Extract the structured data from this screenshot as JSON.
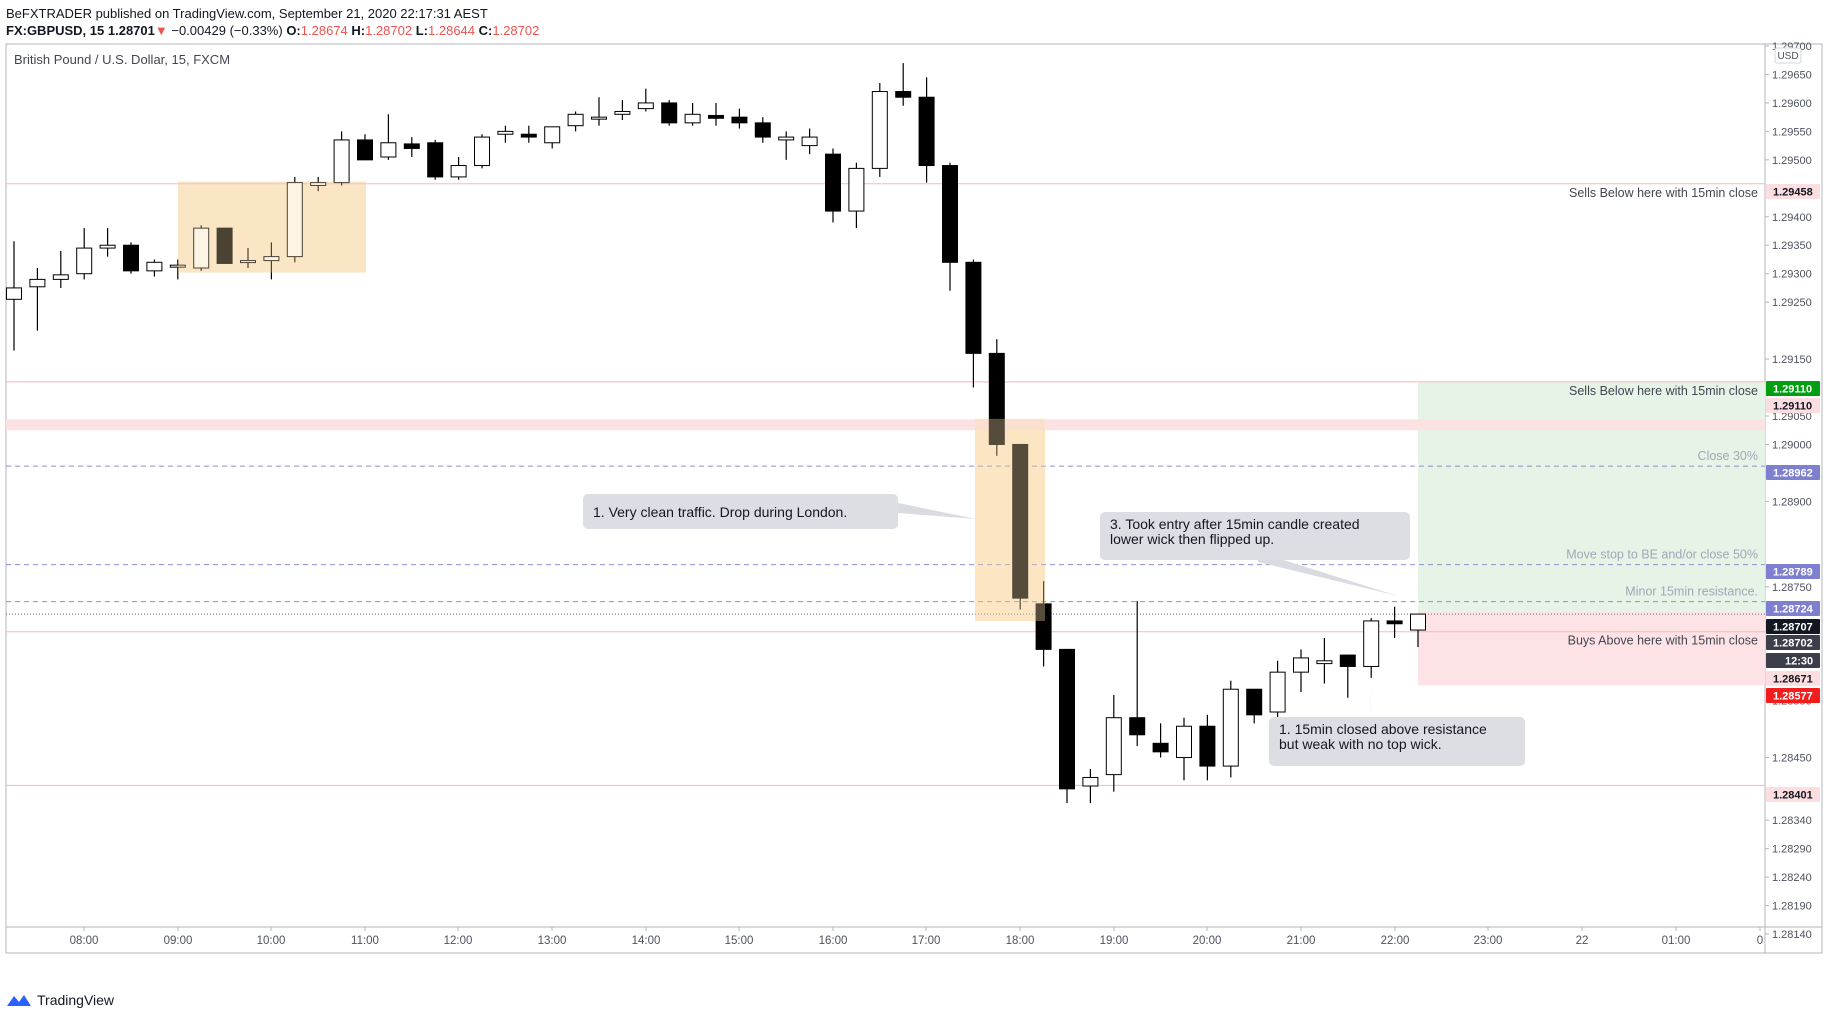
{
  "header": {
    "line1": "BeFXTRADER published on TradingView.com, September 21, 2020 22:17:31 AEST",
    "symbol": "FX:GBPUSD, 15",
    "last": "1.28701",
    "arrow": "▼",
    "change": "−0.00429 (−0.33%)",
    "o_label": "O:",
    "o_value": "1.28674",
    "h_label": "H:",
    "h_value": "1.28702",
    "l_label": "L:",
    "l_value": "1.28644",
    "c_label": "C:",
    "c_value": "1.28702"
  },
  "chart_title": "British Pound / U.S. Dollar, 15, FXCM",
  "currency_badge": "USD",
  "footer": {
    "brand": "TradingView"
  },
  "colors": {
    "up_candle": "#ffffff",
    "down_candle": "#000000",
    "red_line": "#f8b8bd",
    "tp_zone": "#e5f4e7",
    "sl_zone": "#fde3e5",
    "highlight_zone": "#fdebd0",
    "dash_line": "#8b91c9"
  },
  "chart_data": {
    "type": "candlestick",
    "title": "British Pound / U.S. Dollar, 15, FXCM",
    "y_ticks": [
      "1.29700",
      "1.29650",
      "1.29600",
      "1.29550",
      "1.29500",
      "1.29400",
      "1.29350",
      "1.29300",
      "1.29250",
      "1.29150",
      "1.29050",
      "1.29000",
      "1.28900",
      "1.28750",
      "1.28550",
      "1.28450",
      "1.28340",
      "1.28290",
      "1.28240",
      "1.28190",
      "1.28140"
    ],
    "x_ticks": [
      "08:00",
      "09:00",
      "10:00",
      "11:00",
      "12:00",
      "13:00",
      "14:00",
      "15:00",
      "16:00",
      "17:00",
      "18:00",
      "19:00",
      "20:00",
      "21:00",
      "22:00",
      "23:00",
      "22",
      "01:00",
      "0"
    ],
    "candles": [
      {
        "o": 1.29255,
        "h": 1.29357,
        "l": 1.29165,
        "c": 1.29275
      },
      {
        "o": 1.29277,
        "h": 1.2931,
        "l": 1.292,
        "c": 1.2929
      },
      {
        "o": 1.2929,
        "h": 1.2934,
        "l": 1.29275,
        "c": 1.29298
      },
      {
        "o": 1.293,
        "h": 1.2938,
        "l": 1.2929,
        "c": 1.29345
      },
      {
        "o": 1.29345,
        "h": 1.2938,
        "l": 1.2933,
        "c": 1.2935
      },
      {
        "o": 1.2935,
        "h": 1.29355,
        "l": 1.293,
        "c": 1.29305
      },
      {
        "o": 1.29305,
        "h": 1.29325,
        "l": 1.29295,
        "c": 1.2932
      },
      {
        "o": 1.29312,
        "h": 1.29325,
        "l": 1.2929,
        "c": 1.29315
      },
      {
        "o": 1.2931,
        "h": 1.29385,
        "l": 1.29305,
        "c": 1.2938
      },
      {
        "o": 1.2938,
        "h": 1.2938,
        "l": 1.29318,
        "c": 1.29318
      },
      {
        "o": 1.2932,
        "h": 1.29345,
        "l": 1.2931,
        "c": 1.29323
      },
      {
        "o": 1.29323,
        "h": 1.29355,
        "l": 1.2929,
        "c": 1.2933
      },
      {
        "o": 1.2933,
        "h": 1.2947,
        "l": 1.2932,
        "c": 1.2946
      },
      {
        "o": 1.29455,
        "h": 1.2947,
        "l": 1.29445,
        "c": 1.2946
      },
      {
        "o": 1.2946,
        "h": 1.2955,
        "l": 1.29455,
        "c": 1.29535
      },
      {
        "o": 1.29535,
        "h": 1.29545,
        "l": 1.295,
        "c": 1.295
      },
      {
        "o": 1.29505,
        "h": 1.2958,
        "l": 1.295,
        "c": 1.2953
      },
      {
        "o": 1.29528,
        "h": 1.2954,
        "l": 1.29505,
        "c": 1.2952
      },
      {
        "o": 1.2953,
        "h": 1.29535,
        "l": 1.29465,
        "c": 1.2947
      },
      {
        "o": 1.2947,
        "h": 1.29505,
        "l": 1.29465,
        "c": 1.2949
      },
      {
        "o": 1.2949,
        "h": 1.29545,
        "l": 1.29485,
        "c": 1.2954
      },
      {
        "o": 1.29545,
        "h": 1.2956,
        "l": 1.2953,
        "c": 1.2955
      },
      {
        "o": 1.29545,
        "h": 1.2956,
        "l": 1.2953,
        "c": 1.2954
      },
      {
        "o": 1.2953,
        "h": 1.29555,
        "l": 1.2952,
        "c": 1.29558
      },
      {
        "o": 1.2956,
        "h": 1.29585,
        "l": 1.2955,
        "c": 1.2958
      },
      {
        "o": 1.29575,
        "h": 1.2961,
        "l": 1.2956,
        "c": 1.29575
      },
      {
        "o": 1.2958,
        "h": 1.29605,
        "l": 1.2957,
        "c": 1.29585
      },
      {
        "o": 1.2959,
        "h": 1.29625,
        "l": 1.29585,
        "c": 1.296
      },
      {
        "o": 1.296,
        "h": 1.29605,
        "l": 1.2956,
        "c": 1.29565
      },
      {
        "o": 1.29565,
        "h": 1.296,
        "l": 1.2956,
        "c": 1.2958
      },
      {
        "o": 1.29578,
        "h": 1.296,
        "l": 1.2956,
        "c": 1.29573
      },
      {
        "o": 1.29575,
        "h": 1.2959,
        "l": 1.29555,
        "c": 1.29565
      },
      {
        "o": 1.29565,
        "h": 1.29575,
        "l": 1.2953,
        "c": 1.2954
      },
      {
        "o": 1.29535,
        "h": 1.2955,
        "l": 1.295,
        "c": 1.2954
      },
      {
        "o": 1.29525,
        "h": 1.29555,
        "l": 1.2951,
        "c": 1.2954
      },
      {
        "o": 1.2951,
        "h": 1.2952,
        "l": 1.2939,
        "c": 1.2941
      },
      {
        "o": 1.2941,
        "h": 1.29495,
        "l": 1.2938,
        "c": 1.29485
      },
      {
        "o": 1.29485,
        "h": 1.29635,
        "l": 1.2947,
        "c": 1.2962
      },
      {
        "o": 1.2962,
        "h": 1.2967,
        "l": 1.29595,
        "c": 1.2961
      },
      {
        "o": 1.2961,
        "h": 1.29645,
        "l": 1.2946,
        "c": 1.2949
      },
      {
        "o": 1.2949,
        "h": 1.29495,
        "l": 1.2927,
        "c": 1.2932
      },
      {
        "o": 1.2932,
        "h": 1.29325,
        "l": 1.291,
        "c": 1.2916
      },
      {
        "o": 1.2916,
        "h": 1.29185,
        "l": 1.2898,
        "c": 1.29
      },
      {
        "o": 1.29,
        "h": 1.29,
        "l": 1.2871,
        "c": 1.2873
      },
      {
        "o": 1.2872,
        "h": 1.2876,
        "l": 1.2861,
        "c": 1.2864
      },
      {
        "o": 1.2864,
        "h": 1.2864,
        "l": 1.2837,
        "c": 1.28395
      },
      {
        "o": 1.284,
        "h": 1.2843,
        "l": 1.2837,
        "c": 1.28415
      },
      {
        "o": 1.2842,
        "h": 1.2856,
        "l": 1.2839,
        "c": 1.2852
      },
      {
        "o": 1.2852,
        "h": 1.28725,
        "l": 1.2847,
        "c": 1.2849
      },
      {
        "o": 1.28475,
        "h": 1.2851,
        "l": 1.2845,
        "c": 1.2846
      },
      {
        "o": 1.2845,
        "h": 1.2852,
        "l": 1.2841,
        "c": 1.28505
      },
      {
        "o": 1.28505,
        "h": 1.28525,
        "l": 1.2841,
        "c": 1.28435
      },
      {
        "o": 1.28435,
        "h": 1.28585,
        "l": 1.28415,
        "c": 1.2857
      },
      {
        "o": 1.2857,
        "h": 1.2857,
        "l": 1.2851,
        "c": 1.28525
      },
      {
        "o": 1.2853,
        "h": 1.2862,
        "l": 1.285,
        "c": 1.286
      },
      {
        "o": 1.286,
        "h": 1.2864,
        "l": 1.28565,
        "c": 1.28625
      },
      {
        "o": 1.28615,
        "h": 1.2866,
        "l": 1.2858,
        "c": 1.2862
      },
      {
        "o": 1.2863,
        "h": 1.2863,
        "l": 1.28555,
        "c": 1.2861
      },
      {
        "o": 1.2861,
        "h": 1.28695,
        "l": 1.2859,
        "c": 1.2869
      },
      {
        "o": 1.2869,
        "h": 1.28715,
        "l": 1.2866,
        "c": 1.28685
      },
      {
        "o": 1.28674,
        "h": 1.28702,
        "l": 1.28644,
        "c": 1.28702
      }
    ],
    "horizontal_levels": [
      {
        "price": 1.29458,
        "label": "Sells Below here with 15min close",
        "style": "red"
      },
      {
        "price": 1.2911,
        "label": "Sells Below here with 15min close",
        "style": "red"
      },
      {
        "price": 1.28962,
        "label": "Close 30%",
        "style": "dashed"
      },
      {
        "price": 1.28789,
        "label": "Move stop to BE and/or close 50%",
        "style": "dashed"
      },
      {
        "price": 1.28724,
        "label": "Minor 15min resistance.",
        "style": "dashed"
      },
      {
        "price": 1.28702,
        "label": "",
        "style": "dotted"
      },
      {
        "price": 1.28671,
        "label": "Buys Above here with 15min close",
        "style": "red"
      },
      {
        "price": 1.28401,
        "label": "",
        "style": "red"
      }
    ],
    "price_badges": [
      {
        "text": "1.29458",
        "kind": "pink"
      },
      {
        "text": "1.29110",
        "kind": "green"
      },
      {
        "text": "1.29110",
        "kind": "pink"
      },
      {
        "text": "1.28962",
        "kind": "purple"
      },
      {
        "text": "1.28789",
        "kind": "purple"
      },
      {
        "text": "1.28724",
        "kind": "purple"
      },
      {
        "text": "1.28707",
        "kind": "dark"
      },
      {
        "text": "1.28702",
        "kind": "darkgray"
      },
      {
        "text": "12:30",
        "kind": "darkgray"
      },
      {
        "text": "1.28671",
        "kind": "pink"
      },
      {
        "text": "1.28577",
        "kind": "red"
      },
      {
        "text": "1.28401",
        "kind": "pink"
      }
    ],
    "annotations": [
      {
        "lines": [
          "1. Very clean traffic. Drop during London."
        ]
      },
      {
        "lines": [
          "3. Took entry after 15min candle created",
          "lower wick then flipped up."
        ]
      },
      {
        "lines": [
          "1. 15min closed above resistance",
          "but weak with no top wick."
        ]
      }
    ]
  }
}
